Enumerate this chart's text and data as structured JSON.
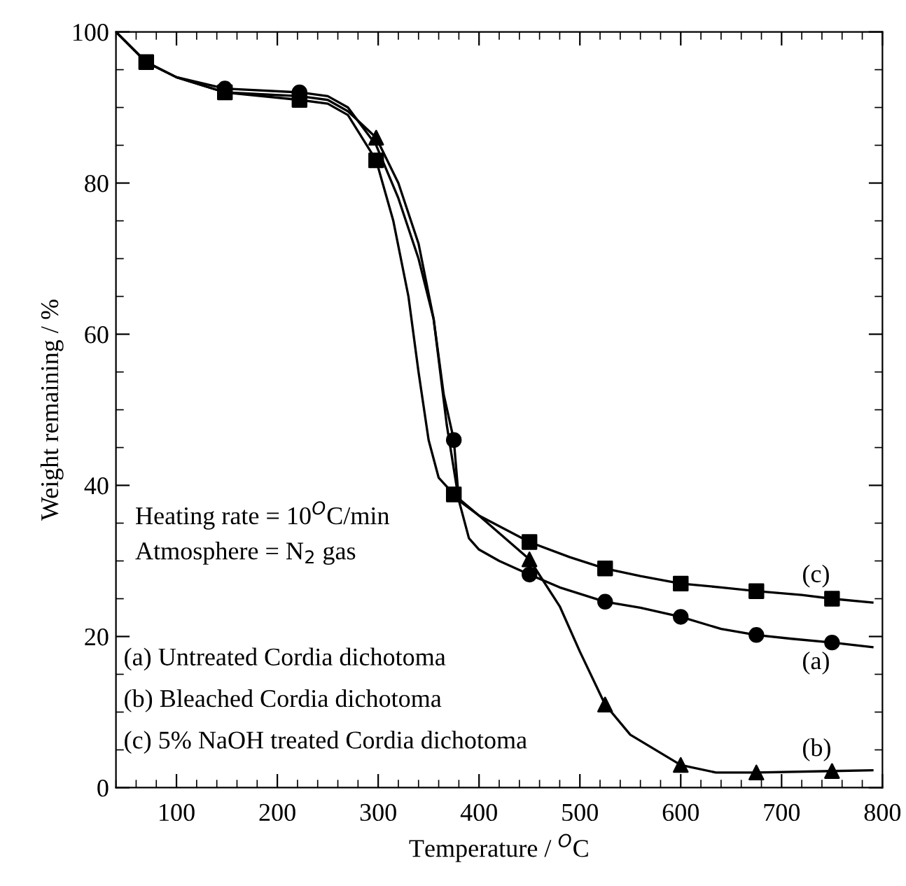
{
  "chart_data": {
    "type": "line",
    "xlabel": "Temperature / $^{O}$C",
    "ylabel": "Weight remaining / %",
    "xlim": [
      40,
      800
    ],
    "ylim": [
      0,
      100
    ],
    "xticks": [
      100,
      200,
      300,
      400,
      500,
      600,
      700,
      800
    ],
    "yticks": [
      0,
      20,
      40,
      60,
      80,
      100
    ],
    "grid": false,
    "legend": false,
    "series": [
      {
        "color": "#000000",
        "marker": "none",
        "line_style": "solid",
        "x": [
          40,
          70,
          100,
          148,
          222,
          250,
          270,
          298,
          320,
          340,
          355,
          365,
          375,
          380,
          390,
          400,
          420,
          450,
          480,
          525,
          560,
          600,
          640,
          675,
          710,
          750,
          790
        ],
        "values": [
          100,
          96,
          94,
          92.5,
          92,
          91.5,
          90,
          85,
          78,
          70,
          62,
          52,
          46,
          38,
          33,
          31.5,
          30,
          28.2,
          26.5,
          24.6,
          23.8,
          22.6,
          21,
          20.2,
          19.7,
          19.2,
          18.6
        ]
      },
      {
        "color": "#000000",
        "marker": "none",
        "line_style": "solid",
        "x": [
          40,
          70,
          100,
          148,
          222,
          250,
          270,
          298,
          320,
          340,
          355,
          368,
          380,
          400,
          450,
          480,
          500,
          525,
          550,
          600,
          635,
          675,
          750,
          790
        ],
        "values": [
          100,
          96,
          94,
          92,
          91.5,
          91,
          89.5,
          86,
          80,
          72,
          62,
          48,
          38,
          36,
          30.2,
          24,
          18,
          11,
          7,
          3,
          2,
          2,
          2.2,
          2.3
        ]
      },
      {
        "color": "#000000",
        "marker": "none",
        "line_style": "solid",
        "x": [
          40,
          70,
          100,
          148,
          222,
          250,
          270,
          298,
          315,
          330,
          340,
          350,
          360,
          375,
          400,
          450,
          490,
          525,
          560,
          600,
          640,
          675,
          720,
          750,
          790
        ],
        "values": [
          100,
          96,
          94,
          92,
          91,
          90.5,
          89,
          83,
          75,
          65,
          55,
          46,
          41,
          38.8,
          36,
          32.5,
          30.5,
          29,
          28,
          27,
          26.5,
          26,
          25.5,
          25,
          24.5
        ]
      },
      {
        "type": "scatter",
        "color": "#000000",
        "marker": "circle",
        "x": [
          148,
          222,
          375,
          450,
          525,
          600,
          675,
          750
        ],
        "values": [
          92.5,
          92,
          46,
          28.2,
          24.6,
          22.6,
          20.2,
          19.2
        ]
      },
      {
        "type": "scatter",
        "color": "#000000",
        "marker": "triangle",
        "x": [
          298,
          450,
          525,
          600,
          675,
          750
        ],
        "values": [
          86,
          30.2,
          11,
          3,
          2,
          2.2
        ]
      },
      {
        "type": "scatter",
        "color": "#000000",
        "marker": "square",
        "x": [
          70,
          148,
          222,
          298,
          375,
          450,
          525,
          600,
          675,
          750
        ],
        "values": [
          96,
          92,
          91,
          83,
          38.8,
          32.5,
          29,
          27,
          26,
          25
        ]
      }
    ],
    "annotations": [
      "Heating rate = 10$^{O}$C/min",
      "Atmosphere = N$_{2}$ gas",
      "(a) Untreated Cordia dichotoma",
      "(b) Bleached Cordia dichotoma",
      "(c) 5% NaOH treated Cordia dichotoma",
      "(c)",
      "(a)",
      "(b)"
    ]
  }
}
